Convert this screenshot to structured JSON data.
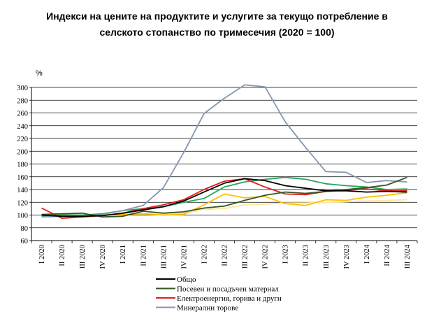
{
  "title_line1": "Индекси на цените на продуктите и услугите за текущо потребление в",
  "title_line2": "селското стопанство по тримесечия (2020 = 100)",
  "chart_data": {
    "type": "line",
    "y_unit": "%",
    "ylim": [
      60,
      300
    ],
    "yticks": [
      60,
      80,
      100,
      120,
      140,
      160,
      180,
      200,
      220,
      240,
      260,
      280,
      300
    ],
    "grid": "horizontal",
    "legend_position": "bottom",
    "categories": [
      "I 2020",
      "II 2020",
      "III 2020",
      "IV 2020",
      "I 2021",
      "II 2021",
      "III 2021",
      "IV 2021",
      "I 2022",
      "II 2022",
      "III 2022",
      "IV 2022",
      "I 2023",
      "II 2023",
      "III 2023",
      "IV 2023",
      "I 2024",
      "II 2024",
      "III 2024"
    ],
    "series": [
      {
        "name": "Общо",
        "color": "#000000",
        "values": [
          100,
          98,
          98,
          99,
          103,
          108,
          113,
          122,
          136,
          150,
          157,
          154,
          146,
          142,
          138,
          138,
          136,
          137,
          136
        ]
      },
      {
        "name": "Посевен и посадъчен материал",
        "color": "#375623",
        "values": [
          101,
          102,
          103,
          97,
          98,
          106,
          103,
          105,
          111,
          114,
          123,
          131,
          136,
          134,
          137,
          140,
          143,
          147,
          159
        ]
      },
      {
        "name": "Електроенергия, горива и други",
        "color": "#e31a1c",
        "values": [
          111,
          95,
          97,
          99,
          103,
          110,
          116,
          124,
          140,
          153,
          157,
          144,
          133,
          132,
          137,
          139,
          141,
          138,
          138
        ]
      },
      {
        "name": "Минерални торове",
        "color": "#8497b0",
        "values": [
          97,
          98,
          97,
          101,
          107,
          115,
          143,
          198,
          259,
          283,
          304,
          301,
          246,
          206,
          168,
          167,
          151,
          154,
          152
        ]
      },
      {
        "name": "",
        "color": "#1faa5a",
        "values": [
          98,
          100,
          100,
          102,
          107,
          110,
          113,
          120,
          126,
          144,
          152,
          156,
          159,
          156,
          149,
          146,
          144,
          140,
          141
        ]
      },
      {
        "name": "",
        "color": "#ffc000",
        "values": [
          99,
          100,
          100,
          100,
          101,
          102,
          100,
          101,
          116,
          133,
          127,
          129,
          118,
          115,
          124,
          123,
          128,
          131,
          135
        ]
      },
      {
        "name": "",
        "color": "#ffe699",
        "values": [
          99,
          100,
          100,
          100,
          101,
          102,
          101,
          103,
          109,
          110,
          116,
          117,
          119,
          119,
          120,
          121,
          122,
          123,
          124
        ]
      }
    ]
  }
}
